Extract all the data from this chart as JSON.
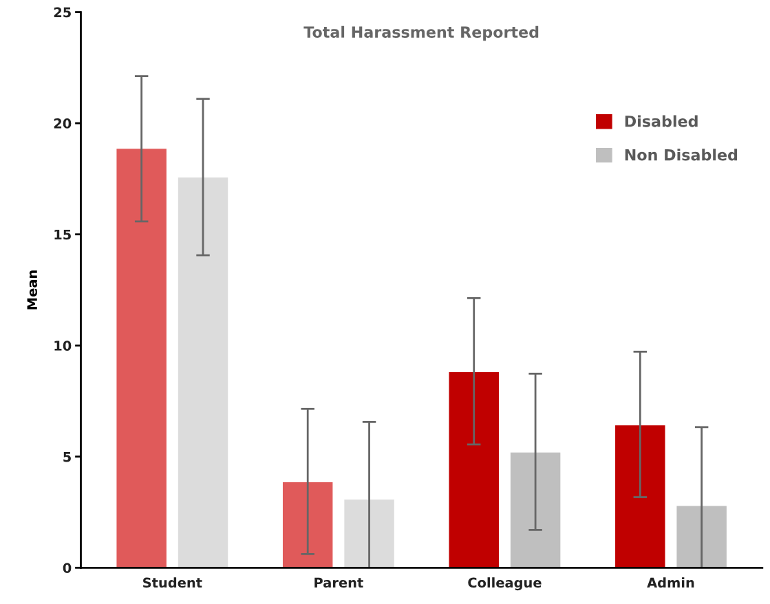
{
  "chart_data": {
    "type": "bar",
    "title": "Total Harassment Reported",
    "ylabel": "Mean",
    "categories": [
      "Student",
      "Parent",
      "Colleague",
      "Admin"
    ],
    "series": [
      {
        "name": "Disabled",
        "color": "#c00000",
        "colors": [
          "#e05a5a",
          "#e05a5a",
          "#c00000",
          "#c00000"
        ],
        "values": [
          18.85,
          3.85,
          8.8,
          6.41
        ],
        "errors": [
          [
            15.58,
            22.12
          ],
          [
            0.62,
            7.15
          ],
          [
            5.55,
            12.13
          ],
          [
            3.18,
            9.72
          ]
        ]
      },
      {
        "name": "Non Disabled",
        "color": "#bfbfbf",
        "colors": [
          "#dcdcdc",
          "#dcdcdc",
          "#bfbfbf",
          "#bfbfbf"
        ],
        "values": [
          17.56,
          3.07,
          5.19,
          2.78
        ],
        "errors": [
          [
            14.06,
            21.1
          ],
          [
            0,
            6.56
          ],
          [
            1.7,
            8.73
          ],
          [
            0,
            6.33
          ]
        ]
      }
    ],
    "ylim": [
      0,
      25
    ],
    "yticks": [
      0,
      5,
      10,
      15,
      20,
      25
    ],
    "grid": false,
    "legend": "top right"
  }
}
